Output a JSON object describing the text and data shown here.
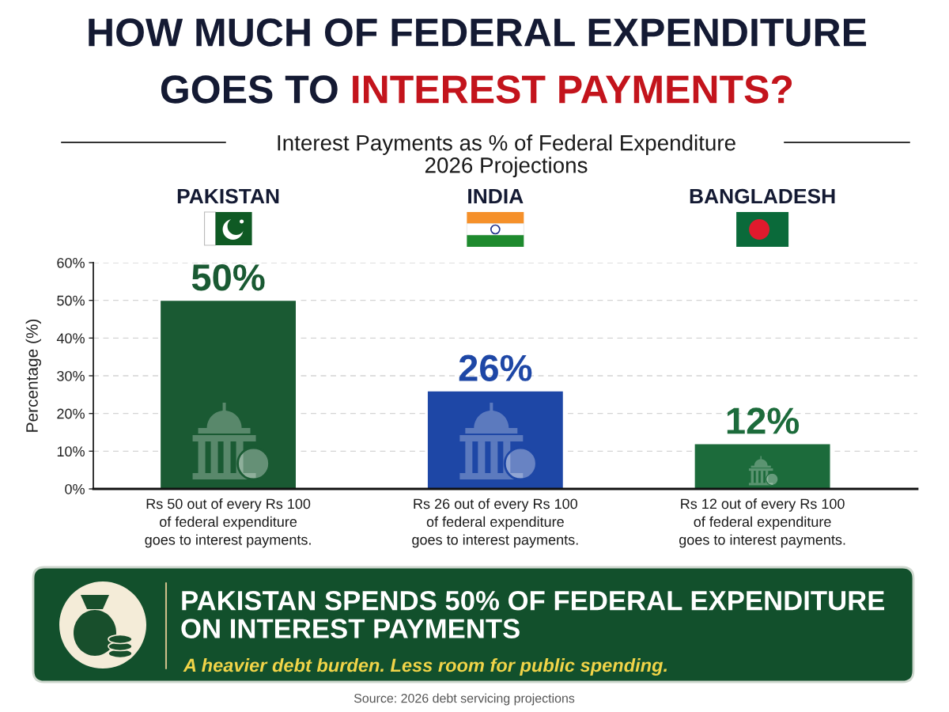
{
  "chart_data": {
    "type": "bar",
    "title": "HOW MUCH OF FEDERAL EXPENDITURE\nGOES TO INTEREST PAYMENTS?",
    "subtitle": "Interest Payments as % of Federal Expenditure\n2026 Projections",
    "categories": [
      "PAKISTAN",
      "INDIA",
      "BANGLADESH"
    ],
    "values": [
      50,
      26,
      12
    ],
    "colors": [
      "#1a5a33",
      "#1e47a6",
      "#1c6b3b"
    ],
    "value_labels": [
      "50%",
      "26%",
      "12%"
    ],
    "ylabel": "Percentage (%)",
    "ylim": [
      0,
      60
    ],
    "yticks": [
      {
        "value": 0,
        "label": "0%"
      },
      {
        "value": 10,
        "label": "10%"
      },
      {
        "value": 20,
        "label": "20%"
      },
      {
        "value": 30,
        "label": "30%"
      },
      {
        "value": 40,
        "label": "40%"
      },
      {
        "value": 50,
        "label": "50%"
      },
      {
        "value": 60,
        "label": "60%"
      }
    ],
    "grid": "y",
    "annotations": [
      "Rs 50 out of every Rs 100\nof federal expenditure\ngoes to interest payments.",
      "Rs 26 out of every Rs 100\nof federal expenditure\ngoes to interest payments.",
      "Rs 12 out of every Rs 100\nof federal expenditure\ngoes to interest payments.",
      "PAKISTAN SPENDS 50% OF FEDERAL EXPENDITURE\nON INTEREST PAYMENTS",
      "A heavier debt burden. Less room for public spending.",
      "Source: 2026 debt servicing projections"
    ]
  }
}
